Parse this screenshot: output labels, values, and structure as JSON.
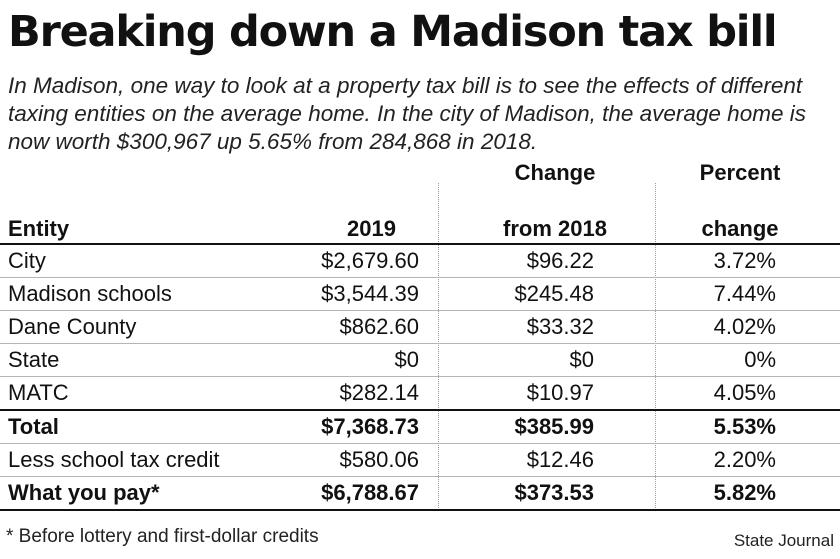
{
  "title": "Breaking down a Madison tax bill",
  "intro": "In Madison, one way to look at a property tax bill is to see the effects of different taxing entities on the average home.  In the city of Madison, the average home is now worth $300,967 up 5.65% from 284,868 in 2018.",
  "chart_data": {
    "type": "table",
    "columns": [
      "Entity",
      "2019",
      "Change from 2018",
      "Percent change"
    ],
    "rows": [
      {
        "entity": "City",
        "y2019": "$2,679.60",
        "change": "$96.22",
        "pct": "3.72%"
      },
      {
        "entity": "Madison schools",
        "y2019": "$3,544.39",
        "change": "$245.48",
        "pct": "7.44%"
      },
      {
        "entity": "Dane County",
        "y2019": "$862.60",
        "change": "$33.32",
        "pct": "4.02%"
      },
      {
        "entity": "State",
        "y2019": "$0",
        "change": "$0",
        "pct": "0%"
      },
      {
        "entity": "MATC",
        "y2019": "$282.14",
        "change": "$10.97",
        "pct": "4.05%"
      },
      {
        "entity": "Total",
        "y2019": "$7,368.73",
        "change": "$385.99",
        "pct": "5.53%"
      },
      {
        "entity": "Less school tax credit",
        "y2019": "$580.06",
        "change": "$12.46",
        "pct": "2.20%"
      },
      {
        "entity": "What you pay*",
        "y2019": "$6,788.67",
        "change": "$373.53",
        "pct": "5.82%"
      }
    ]
  },
  "footnote": "* Before lottery and first-dollar credits",
  "credit": "State Journal"
}
